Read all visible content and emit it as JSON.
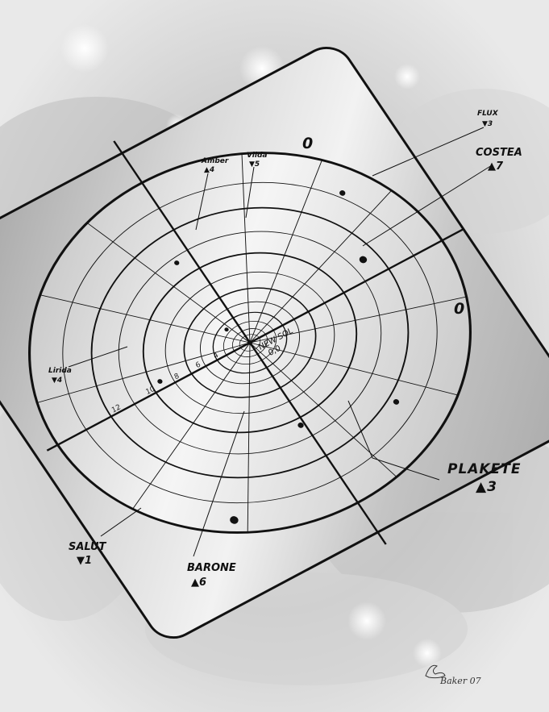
{
  "center": {
    "name": "NEW SOL",
    "coords": "0,0"
  },
  "axis_labels": {
    "x_end": "0",
    "y_end": "0"
  },
  "ring_ticks": [
    "12",
    "10",
    "8",
    "6",
    "4"
  ],
  "systems": [
    {
      "id": "flux",
      "name": "FLUX",
      "code": "▼3",
      "size": "small"
    },
    {
      "id": "costea",
      "name": "COSTEA",
      "code": "▲7",
      "size": "mid"
    },
    {
      "id": "amber",
      "name": "Amber",
      "code": "▲4",
      "size": "small"
    },
    {
      "id": "vilda",
      "name": "Vilda",
      "code": "▼5",
      "size": "small"
    },
    {
      "id": "lirida",
      "name": "Lirida",
      "code": "▼4",
      "size": "small"
    },
    {
      "id": "plakete",
      "name": "PLAKETE",
      "code": "▲3",
      "size": "big"
    },
    {
      "id": "salut",
      "name": "SALUT",
      "code": "▼1",
      "size": "mid"
    },
    {
      "id": "barone",
      "name": "BARONE",
      "code": "▲6",
      "size": "mid"
    }
  ],
  "signature": "Baker 07",
  "colors": {
    "ink": "#111111",
    "plate": "#bdbdbd",
    "plate_light": "#e8e8e8"
  }
}
